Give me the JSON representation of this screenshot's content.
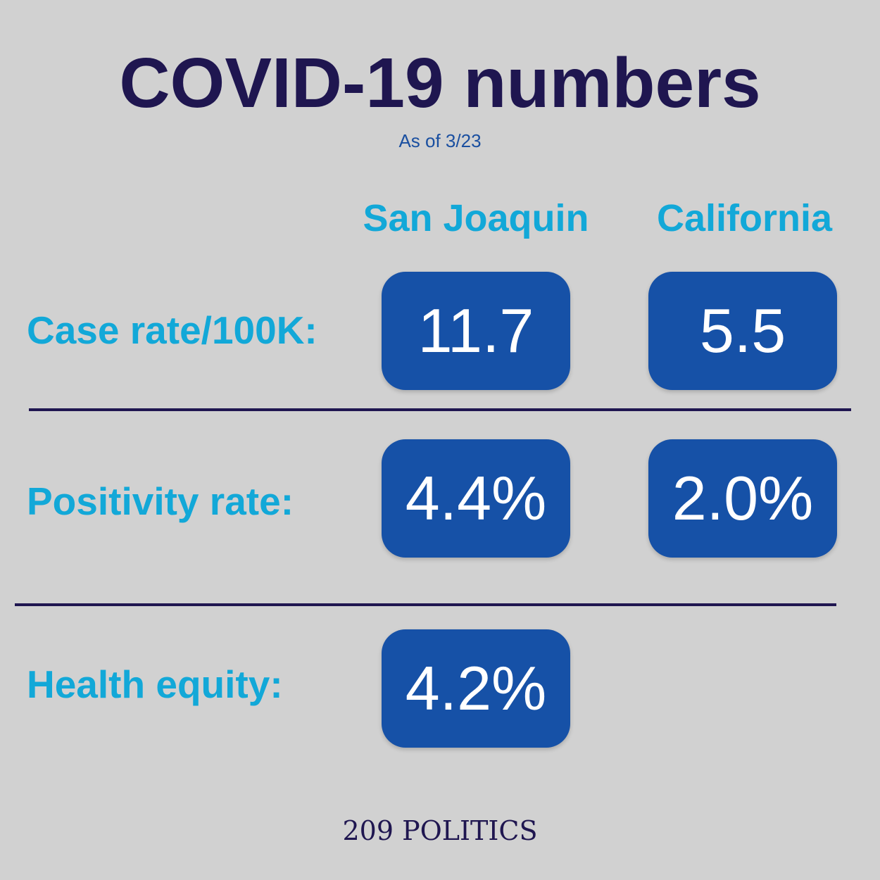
{
  "header": {
    "title": "COVID-19 numbers",
    "subtitle": "As of 3/23"
  },
  "columns": {
    "san_joaquin": "San Joaquin",
    "california": "California"
  },
  "rows": [
    {
      "label": "Case rate/100K:",
      "san_joaquin": "11.7",
      "california": "5.5"
    },
    {
      "label": "Positivity rate:",
      "san_joaquin": "4.4%",
      "california": "2.0%"
    },
    {
      "label": "Health equity:",
      "san_joaquin": "4.2%"
    }
  ],
  "footer": {
    "source": "209 POLITICS"
  },
  "colors": {
    "background": "#d1d1d1",
    "title": "#1f1650",
    "accent": "#12a8d8",
    "box": "#1651a7",
    "box_text": "#ffffff"
  }
}
